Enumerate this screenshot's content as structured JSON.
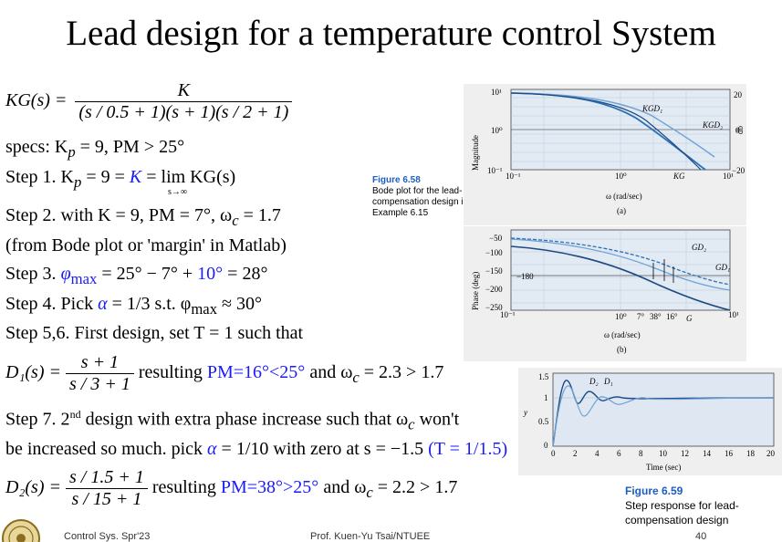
{
  "title": "Lead design for a temperature control System",
  "kg_lhs": "KG(s) =",
  "kg_num": "K",
  "kg_den": "(s / 0.5 + 1)(s + 1)(s / 2 + 1)",
  "specs": "specs: K",
  "specs_sub": "p",
  "specs_rest": " = 9, PM > 25°",
  "step1_pre": "Step 1. K",
  "step1_sub": "p",
  "step1_mid": " = 9 = ",
  "step1_k": "K",
  "step1_post": " = lim KG(s)",
  "step1_lim_sub": "s→∞",
  "step2": "Step 2. with K = 9,  PM = 7°,  ω",
  "step2_sub": "c",
  "step2_post": " = 1.7",
  "bode_note": "(from Bode plot or 'margin' in Matlab)",
  "step3_pre": "Step 3. ",
  "step3_phi": "φ",
  "step3_sub": "max",
  "step3_eq": " = 25° − 7° + ",
  "step3_ten": "10°",
  "step3_post": " = 28°",
  "step4_pre": "Step 4. Pick ",
  "step4_alpha": "α",
  "step4_mid": " = 1/3 s.t. φ",
  "step4_sub": "max",
  "step4_post": " ≈ 30°",
  "step56": "Step 5,6. First design, set T = 1 such that",
  "d1_lhs": "D₁(s) =",
  "d1_num": "s + 1",
  "d1_den": "s / 3 + 1",
  "d1_result_pre": " resulting ",
  "d1_pm": "PM=16°<25°",
  "d1_result_post": " and ω",
  "d1_sub": "c",
  "d1_end": " = 2.3  >  1.7",
  "step7_pre": "Step 7. 2",
  "step7_sup": "nd",
  "step7_post": " design with extra phase increase such that ω",
  "step7_sub": "c",
  "step7_end": " won't",
  "step7b_pre": "be increased so much. pick ",
  "step7b_alpha": "α",
  "step7b_mid": " = 1/10 with zero at s = −1.5 ",
  "step7b_t": "(T = 1/1.5)",
  "d2_lhs": "D₂(s) =",
  "d2_num": "s / 1.5 + 1",
  "d2_den": "s / 15 + 1",
  "d2_result_pre": " resulting ",
  "d2_pm": "PM=38°>25°",
  "d2_result_post": " and ω",
  "d2_sub": "c",
  "d2_end": " = 2.2  >  1.7",
  "fig658": {
    "label": "Figure 6.58",
    "caption": "Bode plot for the lead-compensation design in Example 6.15"
  },
  "fig659": {
    "label": "Figure 6.59",
    "caption": "Step response for lead-compensation design"
  },
  "mag_plot": {
    "ylabel": "Magnitude",
    "yticks": [
      "10¹",
      "10⁰",
      "10⁻¹"
    ],
    "xticks": [
      "10⁻¹",
      "10⁰",
      "10¹"
    ],
    "xlabel": "ω (rad/sec)",
    "sub": "(a)",
    "db_ticks": [
      "20",
      "0",
      "−20"
    ],
    "db_label": "db",
    "curves": [
      "KGD₁",
      "KGD₂",
      "KG"
    ]
  },
  "phase_plot": {
    "ylabel": "Phase (deg)",
    "yticks": [
      "−50",
      "−100",
      "−150",
      "−200",
      "−250"
    ],
    "ref": "−180",
    "xticks": [
      "10⁻¹",
      "10⁰",
      "10¹"
    ],
    "xextra": [
      "7°",
      "38°",
      "16°"
    ],
    "xlabel": "ω (rad/sec)",
    "sub": "(b)",
    "curves": [
      "GD₂",
      "GD₁",
      "G"
    ]
  },
  "step_plot": {
    "ylabel": "y",
    "yticks": [
      "1.5",
      "1",
      "0.5",
      "0"
    ],
    "xticks": [
      "0",
      "2",
      "4",
      "6",
      "8",
      "10",
      "12",
      "14",
      "16",
      "18",
      "20"
    ],
    "xlabel": "Time (sec)",
    "curves": [
      "D₂",
      "D₁"
    ]
  },
  "footer_left": "Control Sys. Spr'23",
  "footer_mid": "Prof. Kuen-Yu Tsai/NTUEE",
  "footer_right": "40"
}
